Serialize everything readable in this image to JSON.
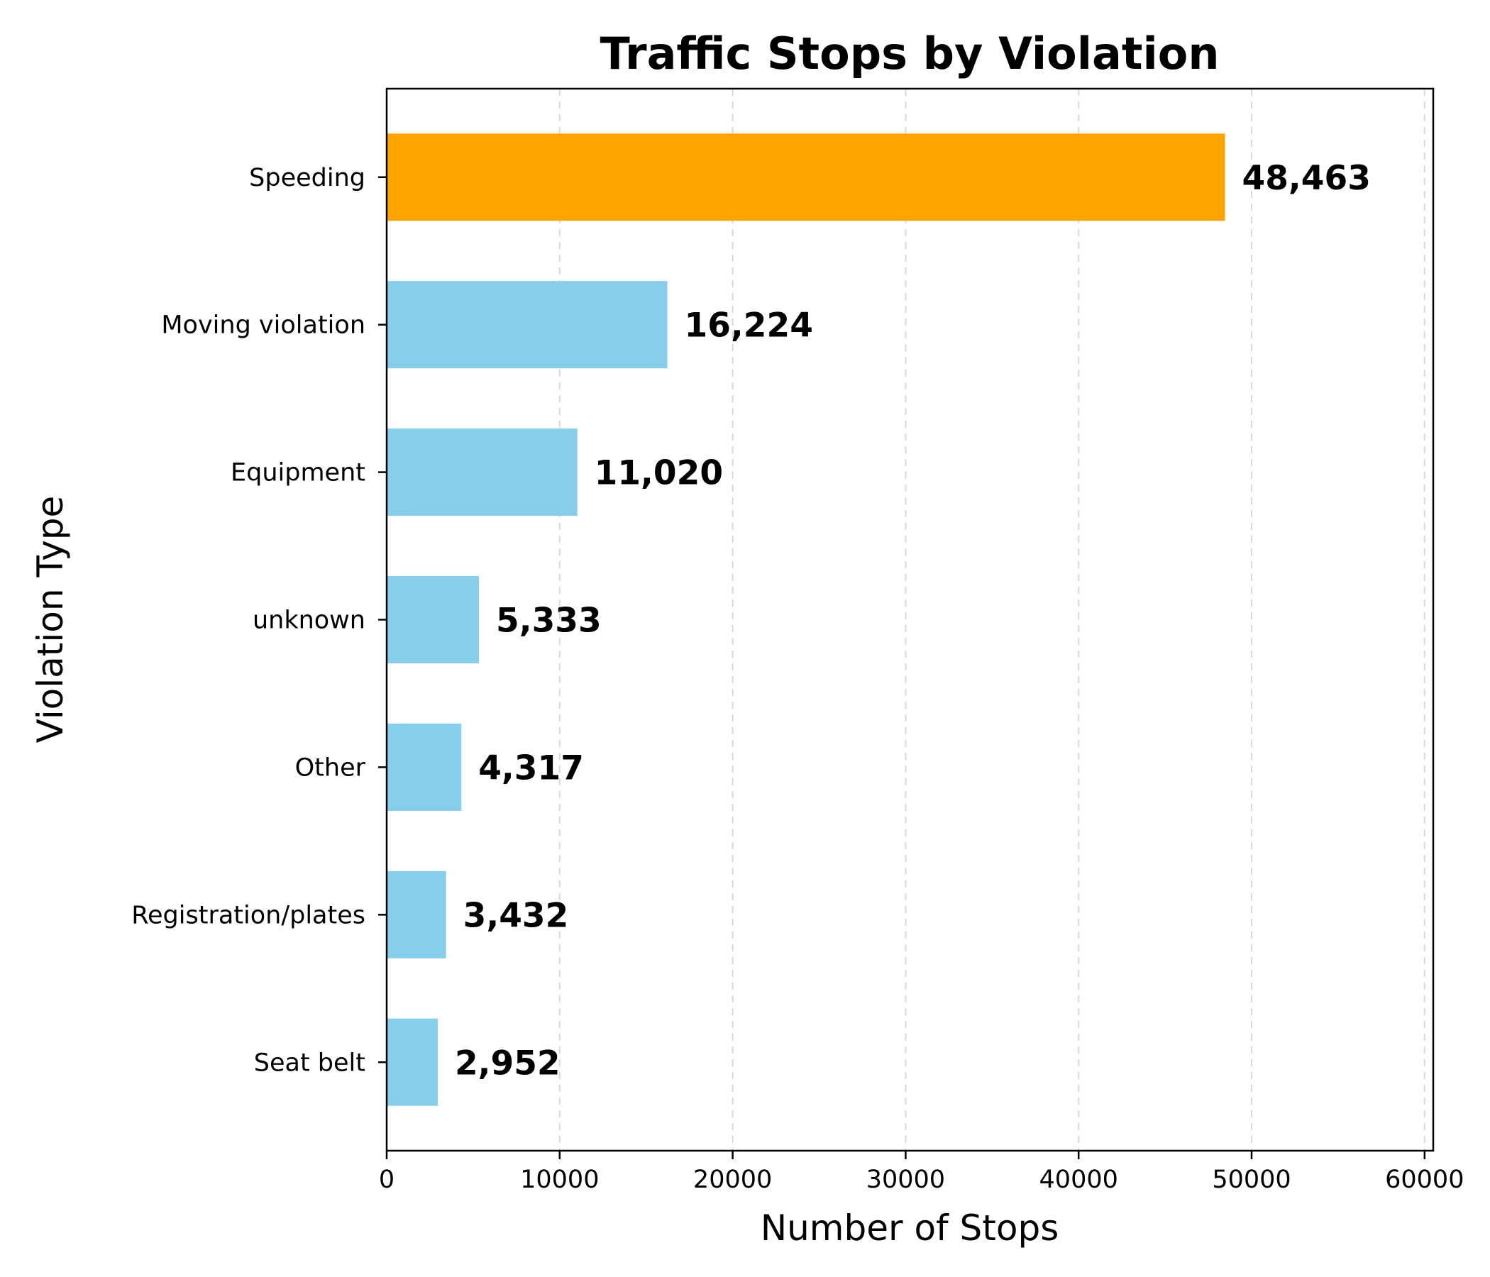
{
  "chart_data": {
    "type": "bar",
    "orientation": "horizontal",
    "title": "Traffic Stops by Violation",
    "xlabel": "Number of Stops",
    "ylabel": "Violation Type",
    "xlim": [
      0,
      60500
    ],
    "x_ticks": [
      0,
      10000,
      20000,
      30000,
      40000,
      50000,
      60000
    ],
    "x_tick_labels": [
      "0",
      "10000",
      "20000",
      "30000",
      "40000",
      "50000",
      "60000"
    ],
    "grid": "x-axis dashed",
    "categories": [
      "Speeding",
      "Moving violation",
      "Equipment",
      "unknown",
      "Other",
      "Registration/plates",
      "Seat belt"
    ],
    "values": [
      48463,
      16224,
      11020,
      5333,
      4317,
      3432,
      2952
    ],
    "value_labels": [
      "48,463",
      "16,224",
      "11,020",
      "5,333",
      "4,317",
      "3,432",
      "2,952"
    ],
    "highlight_color": "#FFA500",
    "bar_color": "#87CEEB"
  }
}
